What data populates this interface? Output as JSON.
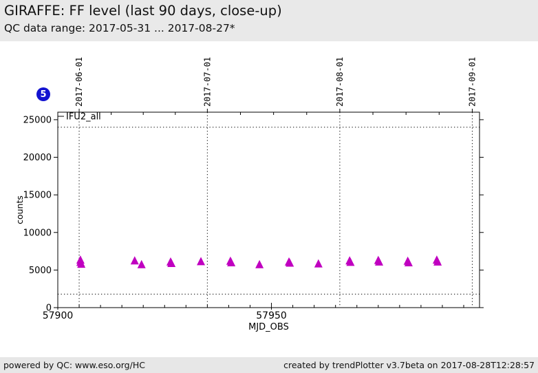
{
  "header": {
    "title": "GIRAFFE: FF level (last 90 days, close-up)",
    "subtitle": "QC data range: 2017-05-31 ... 2017-08-27*"
  },
  "badge": {
    "label": "5",
    "color": "#1313d0"
  },
  "footer": {
    "left": "powered by QC: www.eso.org/HC",
    "right": "created by trendPlotter v3.7beta on 2017-08-28T12:28:57"
  },
  "chart_data": {
    "type": "scatter",
    "marker": "triangle",
    "marker_color": "#c000c0",
    "xlabel": "MJD_OBS",
    "ylabel": "counts",
    "xlim": [
      57900,
      57998.7
    ],
    "ylim": [
      0,
      26000
    ],
    "grid": "dotted-month-lines",
    "legend_position": "top-left-inside",
    "legend": [
      {
        "name": "IFU2_all",
        "color": "#c000c0"
      }
    ],
    "x_major_ticks": [
      {
        "v": 57900,
        "label": "57900"
      },
      {
        "v": 57950,
        "label": "57950"
      }
    ],
    "x_minor_step": 5,
    "y_major_ticks": [
      {
        "v": 0,
        "label": "0"
      },
      {
        "v": 5000,
        "label": "5000"
      },
      {
        "v": 10000,
        "label": "10000"
      },
      {
        "v": 15000,
        "label": "15000"
      },
      {
        "v": 20000,
        "label": "20000"
      },
      {
        "v": 25000,
        "label": "25000"
      }
    ],
    "date_ticks": [
      {
        "label": "2017-06-01",
        "v": 57905
      },
      {
        "label": "2017-07-01",
        "v": 57935
      },
      {
        "label": "2017-08-01",
        "v": 57966
      },
      {
        "label": "2017-09-01",
        "v": 57997
      }
    ],
    "x2_minor_ticks": [
      57912.5,
      57920,
      57927.5,
      57942.75,
      57950.5,
      57958.25,
      57973.75,
      57981.5,
      57989.25
    ],
    "limit_lines": [
      24000,
      1800
    ],
    "series": [
      {
        "name": "IFU2_all",
        "points": [
          [
            57905.3,
            6350
          ],
          [
            57905.3,
            6050
          ],
          [
            57905.5,
            5800
          ],
          [
            57918.0,
            6250
          ],
          [
            57919.6,
            5750
          ],
          [
            57926.4,
            6100
          ],
          [
            57926.6,
            5900
          ],
          [
            57933.5,
            6150
          ],
          [
            57940.4,
            6200
          ],
          [
            57940.6,
            6000
          ],
          [
            57947.2,
            5750
          ],
          [
            57954.1,
            6100
          ],
          [
            57954.3,
            5950
          ],
          [
            57961.0,
            5850
          ],
          [
            57968.3,
            6250
          ],
          [
            57968.5,
            6050
          ],
          [
            57975.0,
            6300
          ],
          [
            57975.2,
            6100
          ],
          [
            57981.9,
            6200
          ],
          [
            57982.1,
            6000
          ],
          [
            57988.7,
            6350
          ],
          [
            57988.9,
            6100
          ]
        ]
      }
    ]
  }
}
